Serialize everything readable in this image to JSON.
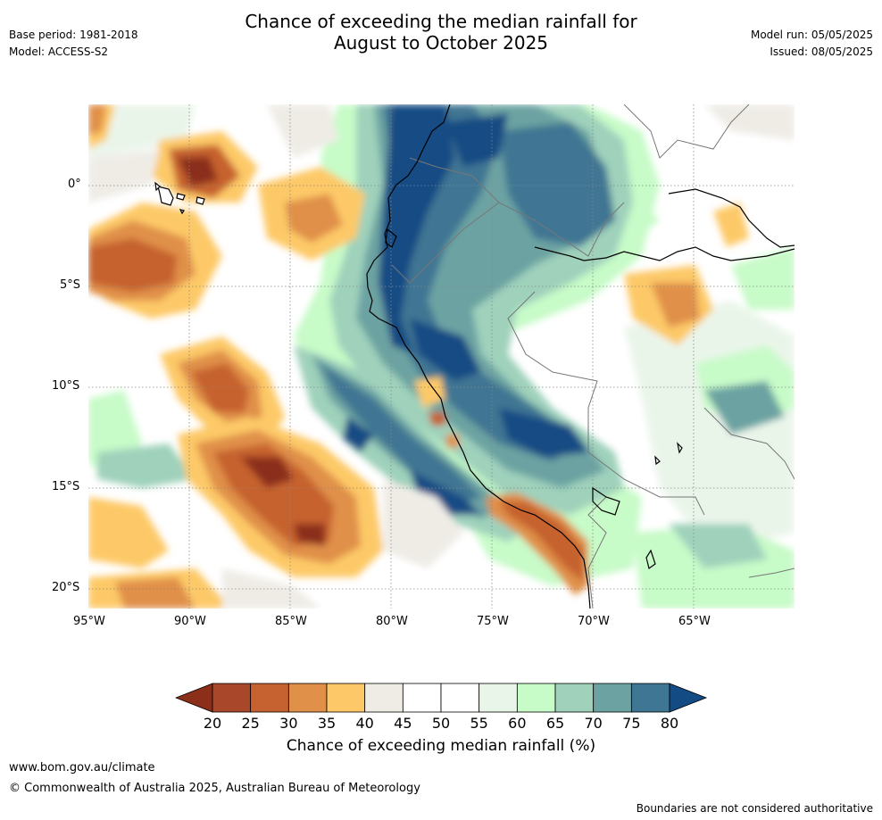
{
  "header": {
    "title_line1": "Chance of exceeding the median rainfall for",
    "title_line2": "August to October 2025",
    "base_period": "Base period: 1981-2018",
    "model": "Model: ACCESS-S2",
    "model_run": "Model run: 05/05/2025",
    "issued": "Issued: 08/05/2025"
  },
  "map": {
    "lat_labels": [
      "0°",
      "5°S",
      "10°S",
      "15°S",
      "20°S"
    ],
    "lon_labels": [
      "95°W",
      "90°W",
      "85°W",
      "80°W",
      "75°W",
      "70°W",
      "65°W"
    ],
    "extent": {
      "lon": [
        -95,
        -60
      ],
      "lat": [
        -21,
        4
      ]
    }
  },
  "colorbar": {
    "ticks": [
      "20",
      "25",
      "30",
      "35",
      "40",
      "45",
      "50",
      "55",
      "60",
      "65",
      "70",
      "75",
      "80"
    ],
    "colors": [
      "#8b2e1a",
      "#a9472a",
      "#c6622f",
      "#e09048",
      "#fdc968",
      "#efece6",
      "#ffffff",
      "#ffffff",
      "#eaf5ea",
      "#c7fbc8",
      "#9fd1bb",
      "#6ca3a2",
      "#3f7693",
      "#134b84"
    ],
    "label": "Chance of exceeding median rainfall (%)"
  },
  "footer": {
    "url": "www.bom.gov.au/climate",
    "copyright": "© Commonwealth of Australia 2025, Australian Bureau of Meteorology",
    "disclaimer": "Boundaries are not considered authoritative"
  }
}
